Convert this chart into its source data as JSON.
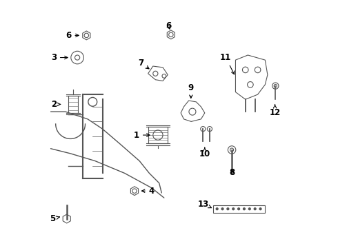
{
  "bg_color": "#ffffff",
  "line_color": "#555555",
  "text_color": "#000000"
}
